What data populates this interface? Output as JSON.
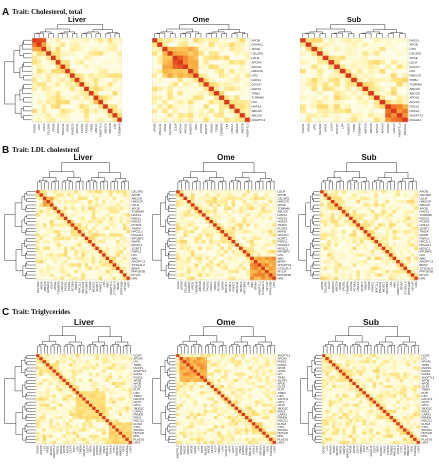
{
  "sections": [
    {
      "letter": "A",
      "title": "Trait: Cholesterol, total",
      "panels": [
        {
          "label": "Liver",
          "n": 19,
          "rowLabels": [
            "FASN1",
            "LIPC",
            "LDLR",
            "CELSR2",
            "APOB",
            "APOA4",
            "DNAH11",
            "APOE",
            "HMGCR",
            "APOA1",
            "FADS1",
            "FADS2",
            "TRIB1",
            "HNF1A",
            "ANGPTL3",
            "ABCG5",
            "ABCG8",
            "LPA",
            "TOMM40"
          ]
        },
        {
          "label": "Ome",
          "n": 19,
          "rowLabels": [
            "APOB",
            "DNAH11",
            "APOE",
            "CELSR2",
            "LDLR",
            "APOA4",
            "APOA1",
            "HMGCR",
            "LIPC",
            "FADS1",
            "DOCK7",
            "FADS2",
            "TRIB1",
            "TOMM40",
            "LPA",
            "HNF1A",
            "ABCG5",
            "ABCG8",
            "ANGPTL3"
          ]
        },
        {
          "label": "Sub",
          "n": 19,
          "rowLabels": [
            "FADS1",
            "APOB",
            "LIPC",
            "CELSR2",
            "APOE",
            "LDLR",
            "DOCK7",
            "LPA",
            "HMGCR",
            "TRIB1",
            "TOMM40",
            "ABCG5",
            "ABCG8",
            "APOA1",
            "APOA4",
            "FADS2",
            "HNF1A",
            "ANGPTL3",
            "DNAH11"
          ]
        }
      ]
    },
    {
      "letter": "B",
      "title": "Trait: LDL cholesterol",
      "panels": [
        {
          "label": "Liver",
          "n": 27,
          "rowLabels": [
            "CELSR2",
            "APOB",
            "ABCG8",
            "HMGCR",
            "LDLR",
            "APOE",
            "TOMM40",
            "HNF1A",
            "FADS1",
            "FADS2",
            "PCSK9",
            "TIMD4",
            "NPC1L1",
            "DNAH11",
            "IRF2BP2",
            "MAFB",
            "MOSC1",
            "SORT1",
            "PSRC1",
            "LPA",
            "ABO",
            "ANGPTL3",
            "ST3GAL4",
            "BRAP",
            "PPP1R3B",
            "MYLIP",
            "HFE"
          ]
        },
        {
          "label": "Ome",
          "n": 27,
          "rowLabels": [
            "LDLR",
            "APOB",
            "CELSR2",
            "HMGCR",
            "APOE",
            "TOMM40",
            "ABCG8",
            "FADS1",
            "FADS2",
            "HNF1A",
            "TIMD4",
            "PCSK9",
            "MAFB",
            "NPC1L1",
            "SORT1",
            "PSRC1",
            "DNAH11",
            "MOSC1",
            "IRF2BP2",
            "LPA",
            "ABO",
            "BRAP",
            "ANGPTL3",
            "ST3GAL4",
            "MYLIP",
            "PPP1R3B",
            "HFE"
          ]
        },
        {
          "label": "Sub",
          "n": 27,
          "rowLabels": [
            "APOB",
            "CELSR2",
            "LDLR",
            "HMGCR",
            "ABCG8",
            "APOE",
            "FADS1",
            "TOMM40",
            "FADS2",
            "PCSK9",
            "HNF1A",
            "SORT1",
            "TIMD4",
            "MAFB",
            "PSRC1",
            "NPC1L1",
            "DNAH11",
            "MOSC1",
            "IRF2BP2",
            "LPA",
            "ABO",
            "ANGPTL3",
            "BRAP",
            "ST3GAL4",
            "PPP1R3B",
            "MYLIP",
            "HFE"
          ]
        }
      ]
    },
    {
      "letter": "C",
      "title": "Trait: Triglycerides",
      "panels": [
        {
          "label": "Liver",
          "n": 29,
          "rowLabels": [
            "GCKR",
            "APOA5",
            "LPL",
            "TRIB1",
            "MLXIPL",
            "ANGPTL3",
            "FADS1",
            "FADS2",
            "APOB",
            "APOE",
            "CILP2",
            "PLTP",
            "LIPC",
            "TIMD4",
            "GALNT2",
            "CETP",
            "NAT2",
            "JMJD1C",
            "CAPN3",
            "FRMD5",
            "PINX1",
            "MSL2L1",
            "KLHL8",
            "CTF1",
            "ZNF664",
            "HMGCR",
            "IRS1",
            "PLA2G6",
            "LRP1"
          ]
        },
        {
          "label": "Ome",
          "n": 29,
          "rowLabels": [
            "ANGPTL3",
            "APOA5",
            "FADS1",
            "FADS2",
            "APOB",
            "GCKR",
            "LPL",
            "TRIB1",
            "MLXIPL",
            "APOE",
            "CILP2",
            "PLTP",
            "TIMD4",
            "LIPC",
            "GALNT2",
            "NAT2",
            "CETP",
            "JMJD1C",
            "PINX1",
            "CAPN3",
            "FRMD5",
            "MSL2L1",
            "KLHL8",
            "CTF1",
            "ZNF664",
            "HMGCR",
            "IRS1",
            "PLA2G6",
            "LRP1"
          ]
        },
        {
          "label": "Sub",
          "n": 29,
          "rowLabels": [
            "GCKR",
            "LPL",
            "APOA5",
            "TRIB1",
            "MLXIPL",
            "FADS1",
            "FADS2",
            "ANGPTL3",
            "APOB",
            "APOE",
            "CILP2",
            "TIMD4",
            "PLTP",
            "LIPC",
            "GALNT2",
            "CETP",
            "NAT2",
            "JMJD1C",
            "PINX1",
            "CAPN3",
            "FRMD5",
            "MSL2L1",
            "KLHL8",
            "CTF1",
            "ZNF664",
            "HMGCR",
            "IRS1",
            "PLA2G6",
            "LRP1"
          ]
        }
      ]
    }
  ]
}
